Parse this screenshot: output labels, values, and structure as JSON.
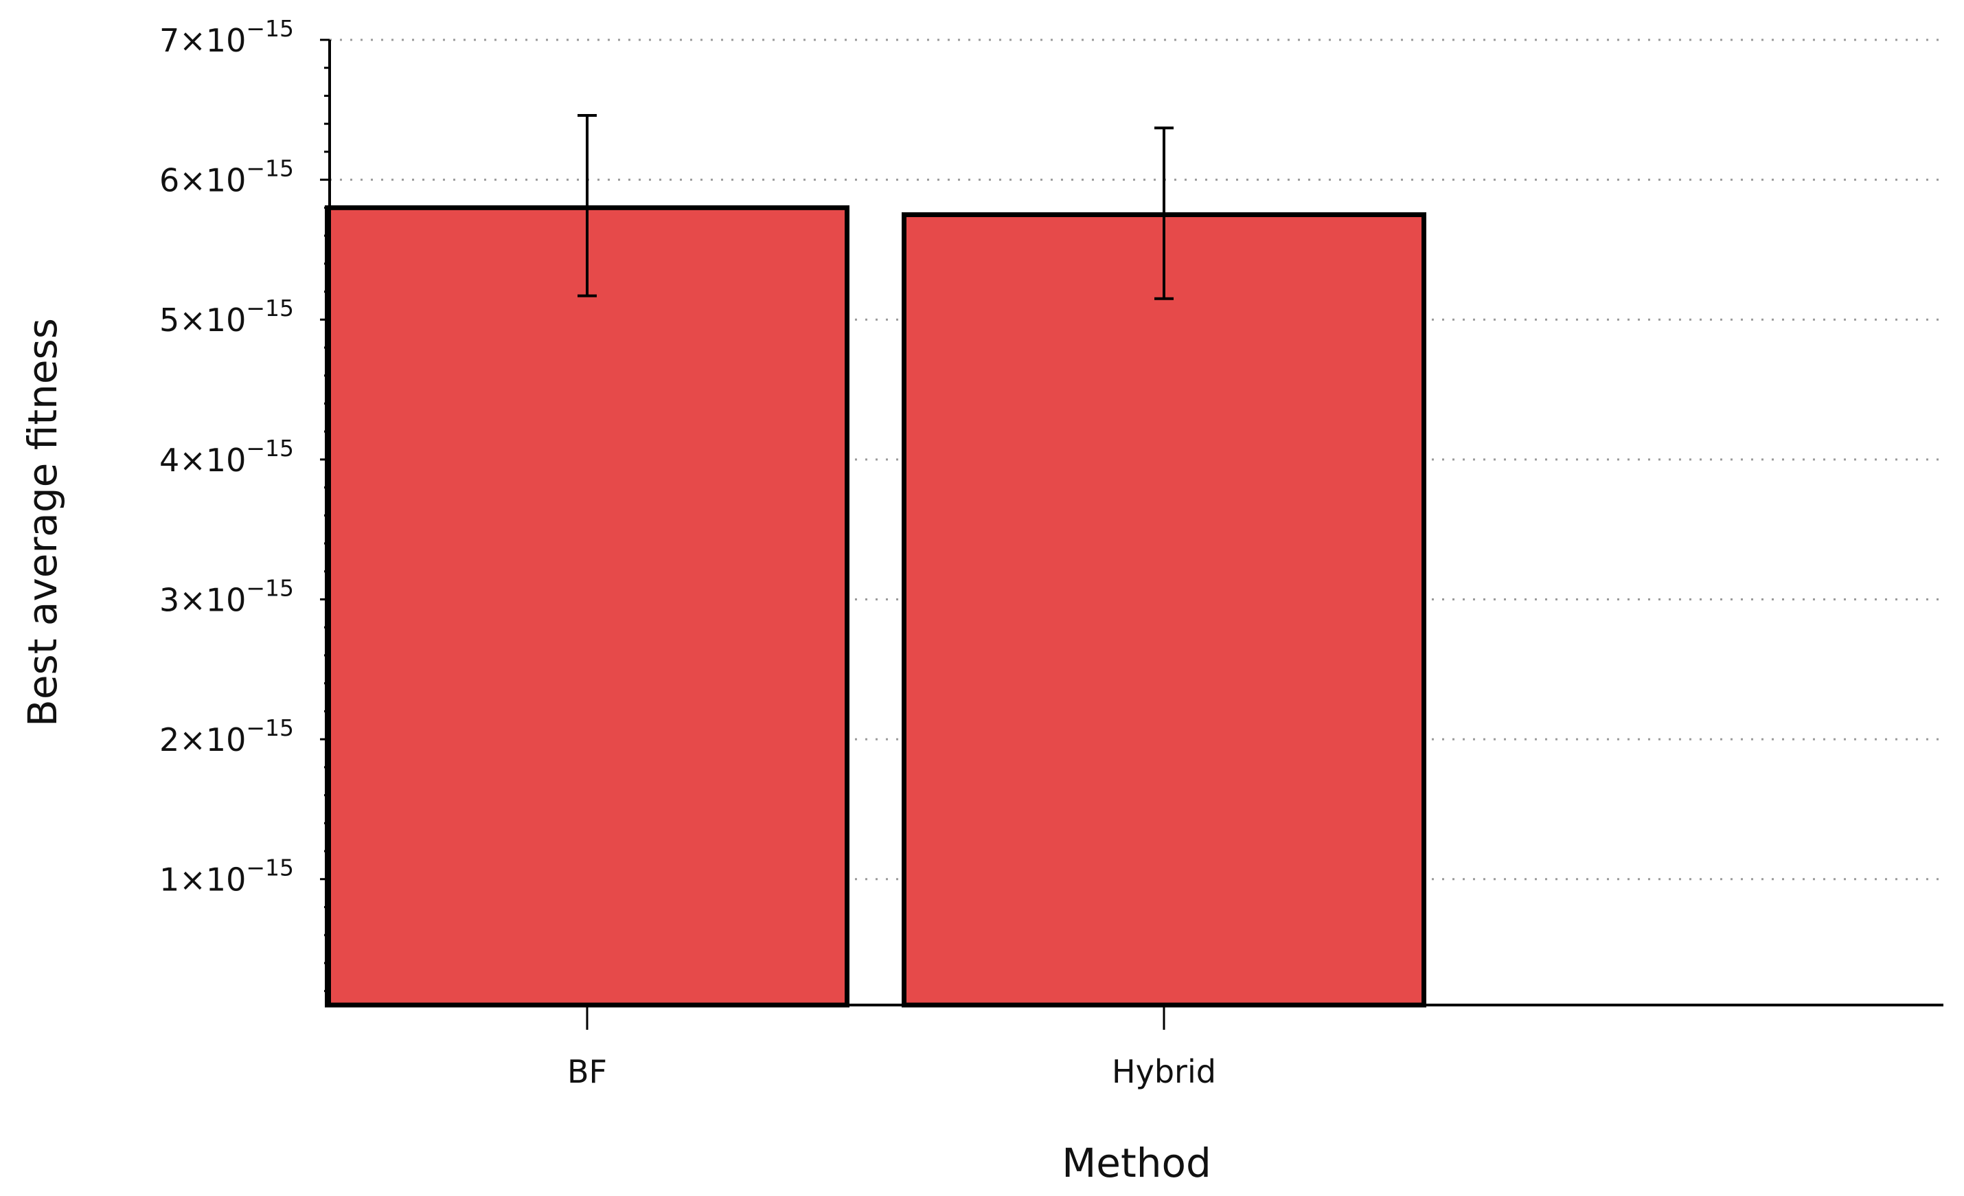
{
  "chart_data": {
    "type": "bar",
    "title": "",
    "xlabel": "Method",
    "ylabel": "Best average fitness",
    "categories": [
      "BF",
      "Hybrid"
    ],
    "values": [
      5.8e-15,
      5.75e-15
    ],
    "error_low": [
      5.17e-15,
      5.15e-15
    ],
    "error_high": [
      6.46e-15,
      6.37e-15
    ],
    "ylim": [
      1e-16,
      7e-15
    ],
    "yticks": [
      {
        "value": 1e-15,
        "mantissa": "1×10",
        "exponent": "−15"
      },
      {
        "value": 2e-15,
        "mantissa": "2×10",
        "exponent": "−15"
      },
      {
        "value": 3e-15,
        "mantissa": "3×10",
        "exponent": "−15"
      },
      {
        "value": 4e-15,
        "mantissa": "4×10",
        "exponent": "−15"
      },
      {
        "value": 5e-15,
        "mantissa": "5×10",
        "exponent": "−15"
      },
      {
        "value": 6e-15,
        "mantissa": "6×10",
        "exponent": "−15"
      },
      {
        "value": 7e-15,
        "mantissa": "7×10",
        "exponent": "−15"
      }
    ],
    "grid": true,
    "colors": {
      "bar": "#e64a4a",
      "outline": "#000000",
      "grid": "#9a9a9a"
    }
  }
}
